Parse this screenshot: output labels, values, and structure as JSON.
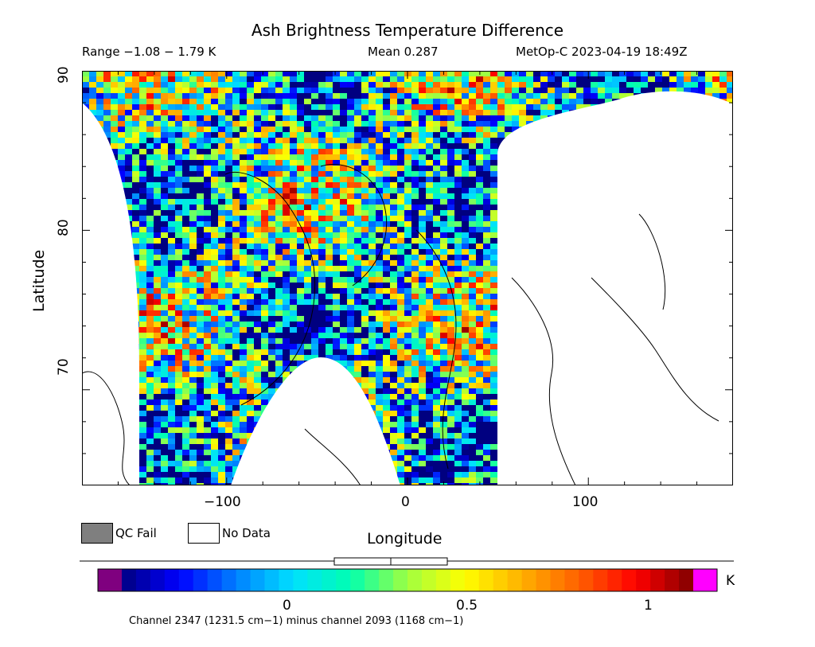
{
  "header": {
    "title": "Ash Brightness Temperature Difference",
    "range_text": "Range −1.08 − 1.79 K",
    "mean_text": "Mean 0.287",
    "satellite_text": "MetOp-C 2023-04-19 18:49Z"
  },
  "axes": {
    "xlabel": "Longitude",
    "ylabel": "Latitude",
    "x_ticks": [
      "−100",
      "0",
      "100"
    ],
    "y_ticks": [
      "70",
      "80",
      "90"
    ]
  },
  "legend": {
    "qc_fail_label": "QC Fail",
    "no_data_label": "No Data",
    "qc_fail_color": "#7f7f7f",
    "no_data_color": "#ffffff"
  },
  "colorbar": {
    "ticks": [
      "0",
      "0.5",
      "1"
    ],
    "unit": "K",
    "under_color": "#7f007f",
    "over_color": "#ff00ff",
    "stops": [
      "#000080",
      "#0000ff",
      "#0080ff",
      "#00e0ff",
      "#00ffb0",
      "#a0ff40",
      "#ffff00",
      "#ffb000",
      "#ff6000",
      "#ff0000",
      "#800000"
    ]
  },
  "footer": {
    "channel_text": "Channel 2347 (1231.5 cm−1) minus channel 2093 (1168 cm−1)"
  },
  "chart_data": {
    "type": "heatmap",
    "projection": "equirectangular",
    "xlim": [
      -180,
      180
    ],
    "ylim": [
      64,
      90
    ],
    "x_tick_values": [
      -100,
      0,
      100
    ],
    "y_tick_values": [
      70,
      80,
      90
    ],
    "color_range": [
      -0.3,
      1.2
    ],
    "data_range": [
      -1.08,
      1.79
    ],
    "mean": 0.287,
    "data_coverage": "swath between about -150 and 45 longitude north of 64N, plus northern rim near 90N; no data elsewhere"
  }
}
